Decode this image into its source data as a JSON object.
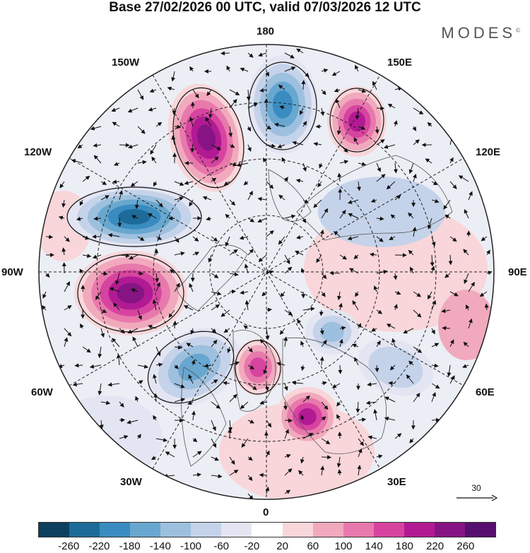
{
  "title": "Base 27/02/2026 00 UTC, valid 07/03/2026 12 UTC",
  "brand": "MODES",
  "brand_mark": "©",
  "longitude_labels": {
    "top": "180",
    "bottom": "0",
    "left": "90W",
    "right": "90E",
    "upper_left_1": "150W",
    "upper_left_2": "120W",
    "upper_right_1": "150E",
    "upper_right_2": "120E",
    "lower_left_1": "60W",
    "lower_left_2": "30W",
    "lower_right_1": "60E",
    "lower_right_2": "30E"
  },
  "vector_scale": "30",
  "colorbar": {
    "colors": [
      "#0d3f5e",
      "#1c6b98",
      "#3a8cc0",
      "#68a7cf",
      "#9ec0df",
      "#c5d3ea",
      "#e3e6f2",
      "#ffffff",
      "#f8d6da",
      "#f1a9bd",
      "#e879ac",
      "#d744a0",
      "#b21a93",
      "#861484",
      "#560f6e"
    ],
    "tick_labels": [
      "-260",
      "-220",
      "-180",
      "-140",
      "-100",
      "-60",
      "-20",
      "20",
      "60",
      "100",
      "140",
      "180",
      "220",
      "260"
    ]
  },
  "anomalies": [
    {
      "name": "low-alaska",
      "value": -240
    },
    {
      "name": "low-north-pacific",
      "value": -200
    },
    {
      "name": "low-greenland-atlantic",
      "value": -160
    },
    {
      "name": "low-siberia",
      "value": -120
    },
    {
      "name": "low-central-asia",
      "value": -100
    },
    {
      "name": "high-north-america",
      "value": 250
    },
    {
      "name": "high-gulf-of-alaska",
      "value": 240
    },
    {
      "name": "high-east-siberia",
      "value": 200
    },
    {
      "name": "high-europe",
      "value": 180
    },
    {
      "name": "high-north-sea",
      "value": 160
    }
  ]
}
